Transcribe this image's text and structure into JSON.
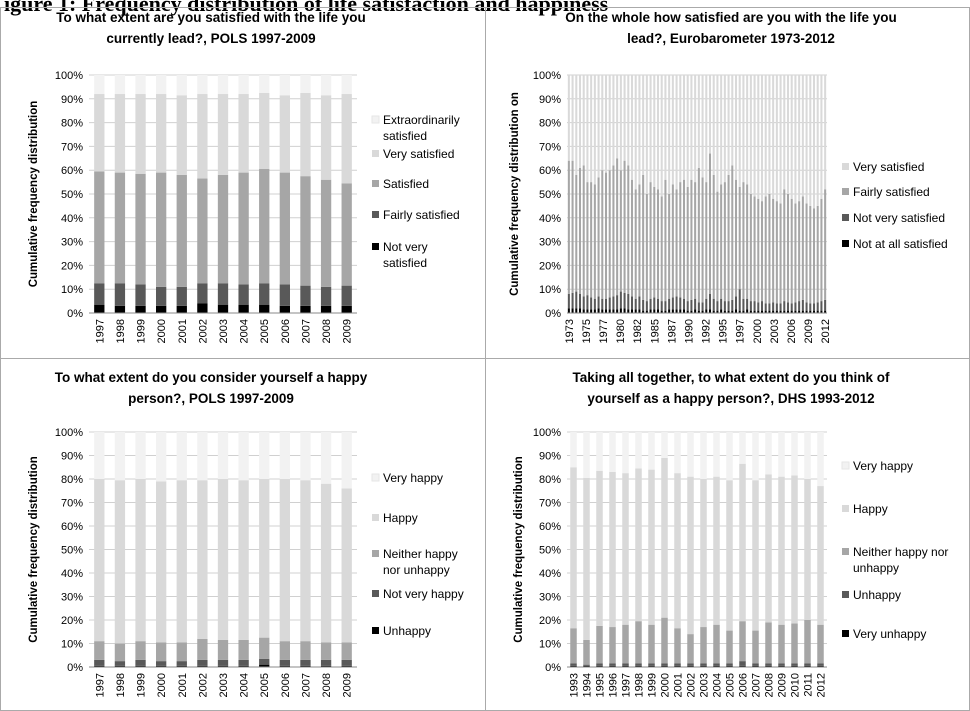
{
  "heading": "igure 1: Frequency distribution of life satisfaction and happiness",
  "chart_data": [
    {
      "type": "stacked-bar",
      "title": "To what extent are you satisfied with the life you currently lead?, POLS 1997-2009",
      "title_lines": [
        "To what extent are you satisfied with the life you",
        "currently lead?, POLS 1997-2009"
      ],
      "ylabel": "Cumulative frequency distribution",
      "ylim": [
        0,
        100
      ],
      "yticks": [
        "0%",
        "10%",
        "20%",
        "30%",
        "40%",
        "50%",
        "60%",
        "70%",
        "80%",
        "90%",
        "100%"
      ],
      "categories": [
        "1997",
        "1998",
        "1999",
        "2000",
        "2001",
        "2002",
        "2003",
        "2004",
        "2005",
        "2006",
        "2007",
        "2008",
        "2009"
      ],
      "legend_position": "right",
      "series": [
        {
          "name": "Not very satisfied",
          "color": "#000000",
          "values": [
            3.5,
            3,
            3,
            3,
            3,
            4,
            3.5,
            3.5,
            3.5,
            3,
            3,
            3,
            3
          ]
        },
        {
          "name": "Fairly satisfied",
          "color": "#595959",
          "values": [
            9,
            9.5,
            9,
            8,
            8,
            8.5,
            9,
            8.5,
            9,
            9,
            8.5,
            8,
            8.5
          ]
        },
        {
          "name": "Satisfied",
          "color": "#a6a6a6",
          "values": [
            47,
            46.5,
            46.5,
            48,
            47,
            44,
            45.5,
            47,
            48,
            47,
            46,
            45,
            43
          ]
        },
        {
          "name": "Very satisfied",
          "color": "#d9d9d9",
          "values": [
            32.5,
            33,
            33.5,
            33,
            33.5,
            35.5,
            34,
            33,
            32,
            32.5,
            35,
            35.5,
            37.5
          ]
        },
        {
          "name": "Extraordinarily satisfied",
          "color": "#f2f2f2",
          "values": [
            8,
            8,
            8,
            8,
            8.5,
            8,
            8,
            8,
            7.5,
            8.5,
            7.5,
            8.5,
            8
          ]
        }
      ],
      "legend": [
        {
          "lines": [
            "Extraordinarily",
            "satisfied"
          ]
        },
        {
          "lines": [
            "Very satisfied"
          ]
        },
        {
          "lines": [
            "Satisfied"
          ]
        },
        {
          "lines": [
            "Fairly satisfied"
          ]
        },
        {
          "lines": [
            "Not very",
            "satisfied"
          ]
        }
      ]
    },
    {
      "type": "stacked-bar",
      "title": "On the whole how satisfied are you with the life you lead?, Eurobarometer 1973-2012",
      "title_lines": [
        "On the whole how satisfied are you with the life you",
        "lead?, Eurobarometer 1973-2012"
      ],
      "ylabel": "Cumulative frequency distribution on",
      "ylim": [
        0,
        100
      ],
      "yticks": [
        "0%",
        "10%",
        "20%",
        "30%",
        "40%",
        "50%",
        "60%",
        "70%",
        "80%",
        "90%",
        "100%"
      ],
      "categories": [
        "1973",
        "1975",
        "1977",
        "1980",
        "1982",
        "1985",
        "1987",
        "1990",
        "1992",
        "1995",
        "1997",
        "2000",
        "2003",
        "2006",
        "2009",
        "2012"
      ],
      "legend_position": "right",
      "bar_count": 70,
      "cumulative_lower": [
        2,
        2,
        2,
        2,
        1.5,
        1.5,
        1.5,
        1.5,
        2,
        1.5,
        1.5,
        1.5,
        1.5,
        1.5,
        2,
        2,
        1.5,
        1.5,
        1.5,
        1.5,
        1,
        1,
        1.5,
        1.5,
        1.5,
        1,
        1,
        1.5,
        1.5,
        1.5,
        1.5,
        1.5,
        1,
        1,
        1.5,
        1,
        1,
        1.5,
        1.5,
        1,
        1,
        1.5,
        1,
        1,
        1,
        1.5,
        1,
        1,
        1.5,
        1,
        1,
        1,
        1,
        1,
        1,
        1,
        1,
        1,
        1,
        1,
        1,
        1,
        1,
        1,
        1,
        1,
        1,
        1,
        1,
        1
      ],
      "cumulative_mid": [
        8,
        8.5,
        9,
        8,
        7,
        7.5,
        6.5,
        6,
        7,
        6,
        6,
        6.5,
        7,
        7.5,
        9,
        8.5,
        8,
        7,
        6,
        7,
        5.5,
        5,
        6,
        6.5,
        6,
        5,
        5,
        6,
        6.5,
        7,
        6.5,
        6,
        5,
        5.5,
        6,
        4.5,
        4.5,
        6,
        8,
        6,
        5,
        6,
        5,
        5,
        5.5,
        7,
        10,
        6,
        6,
        5,
        5,
        4.5,
        5,
        4,
        4,
        4.5,
        4,
        4,
        5,
        4.5,
        4,
        4.5,
        5,
        5.5,
        4.5,
        4,
        4,
        4.5,
        5,
        5.5
      ],
      "cumulative_upper": [
        64,
        64,
        58,
        61,
        62,
        55,
        55,
        54,
        57,
        60,
        59,
        60,
        62,
        65,
        60,
        64,
        62,
        56,
        52,
        54,
        58,
        50,
        55,
        53,
        52,
        49,
        56,
        50,
        54,
        52,
        55,
        56,
        53,
        56,
        55,
        61,
        57,
        55,
        67,
        58,
        51,
        54,
        55,
        58,
        62,
        56,
        53,
        55,
        54,
        50,
        49,
        48,
        47,
        49,
        50,
        48,
        47,
        46,
        52,
        50,
        48,
        46,
        47,
        49,
        46,
        45,
        44,
        45,
        48,
        52
      ],
      "series": [
        {
          "name": "Not at all satisfied",
          "color": "#000000"
        },
        {
          "name": "Not very satisfied",
          "color": "#595959"
        },
        {
          "name": "Fairly satisfied",
          "color": "#a6a6a6"
        },
        {
          "name": "Very satisfied",
          "color": "#d9d9d9"
        }
      ],
      "legend": [
        {
          "lines": [
            "Very satisfied"
          ]
        },
        {
          "lines": [
            "Fairly satisfied"
          ]
        },
        {
          "lines": [
            "Not very satisfied"
          ]
        },
        {
          "lines": [
            "Not at all satisfied"
          ]
        }
      ]
    },
    {
      "type": "stacked-bar",
      "title": "To what extent do you consider yourself a happy person?, POLS 1997-2009",
      "title_lines": [
        "To what extent do you consider yourself a happy",
        "person?, POLS 1997-2009"
      ],
      "ylabel": "Cumulative frequency distribution",
      "ylim": [
        0,
        100
      ],
      "yticks": [
        "0%",
        "10%",
        "20%",
        "30%",
        "40%",
        "50%",
        "60%",
        "70%",
        "80%",
        "90%",
        "100%"
      ],
      "categories": [
        "1997",
        "1998",
        "1999",
        "2000",
        "2001",
        "2002",
        "2003",
        "2004",
        "2005",
        "2006",
        "2007",
        "2008",
        "2009"
      ],
      "legend_position": "right",
      "series": [
        {
          "name": "Unhappy",
          "color": "#000000",
          "values": [
            0.5,
            0.5,
            0.5,
            0.5,
            0.5,
            0.5,
            0.5,
            0.5,
            1,
            0.5,
            0.5,
            0.5,
            0.5
          ]
        },
        {
          "name": "Not very happy",
          "color": "#595959",
          "values": [
            2.5,
            2,
            2.5,
            2,
            2,
            2.5,
            2.5,
            2.5,
            2.5,
            2.5,
            2.5,
            2.5,
            2.5
          ]
        },
        {
          "name": "Neither happy nor unhappy",
          "color": "#a6a6a6",
          "values": [
            8,
            7.5,
            8,
            8,
            8,
            9,
            8.5,
            8.5,
            9,
            8,
            8,
            7.5,
            7.5
          ]
        },
        {
          "name": "Happy",
          "color": "#d9d9d9",
          "values": [
            69,
            69.5,
            69,
            68.5,
            69,
            67.5,
            68.5,
            68,
            67.5,
            69,
            68.5,
            67.5,
            65.5
          ]
        },
        {
          "name": "Very happy",
          "color": "#f2f2f2",
          "values": [
            20,
            20.5,
            20,
            21,
            20.5,
            20.5,
            20,
            20.5,
            20,
            20,
            20.5,
            22,
            24
          ]
        }
      ],
      "legend": [
        {
          "lines": [
            "Very happy"
          ]
        },
        {
          "lines": [
            "Happy"
          ]
        },
        {
          "lines": [
            "Neither happy",
            "nor unhappy"
          ]
        },
        {
          "lines": [
            "Not very happy"
          ]
        },
        {
          "lines": [
            "Unhappy"
          ]
        }
      ]
    },
    {
      "type": "stacked-bar",
      "title": "Taking all together, to what extent do you think of yourself as a happy person?, DHS 1993-2012",
      "title_lines": [
        "Taking all together, to what extent do you think of",
        "yourself as a happy person?, DHS 1993-2012"
      ],
      "ylabel": "Cumulative frequency distribution",
      "ylim": [
        0,
        100
      ],
      "yticks": [
        "0%",
        "10%",
        "20%",
        "30%",
        "40%",
        "50%",
        "60%",
        "70%",
        "80%",
        "90%",
        "100%"
      ],
      "categories": [
        "1993",
        "1994",
        "1995",
        "1996",
        "1997",
        "1998",
        "1999",
        "2000",
        "2001",
        "2002",
        "2003",
        "2004",
        "2005",
        "2006",
        "2007",
        "2008",
        "2009",
        "2010",
        "2011",
        "2012"
      ],
      "legend_position": "right",
      "series": [
        {
          "name": "Very unhappy",
          "color": "#000000",
          "values": [
            0.5,
            0.5,
            0.5,
            0.5,
            0.5,
            0.5,
            0.5,
            0.5,
            0.5,
            0.5,
            0.5,
            0.5,
            0.5,
            0.5,
            0.5,
            0.5,
            0.5,
            0.5,
            0.5,
            0.5
          ]
        },
        {
          "name": "Unhappy",
          "color": "#595959",
          "values": [
            1,
            0.5,
            1,
            1,
            1,
            1,
            1,
            1,
            1,
            1,
            1,
            1,
            1,
            2,
            1,
            1,
            1,
            1,
            1,
            1
          ]
        },
        {
          "name": "Neither happy nor unhappy",
          "color": "#a6a6a6",
          "values": [
            15,
            10.5,
            16,
            15.5,
            16.5,
            18,
            16.5,
            19.5,
            15,
            12.5,
            15.5,
            16.5,
            14,
            17,
            14,
            17.5,
            16.5,
            17,
            18.5,
            16.5
          ]
        },
        {
          "name": "Happy",
          "color": "#d9d9d9",
          "values": [
            68.5,
            69,
            66,
            66,
            64.5,
            65,
            66,
            68,
            66,
            67,
            63,
            63,
            64,
            67,
            64,
            63,
            63,
            63,
            60,
            59
          ]
        },
        {
          "name": "Very happy",
          "color": "#f2f2f2",
          "values": [
            15,
            19.5,
            16.5,
            17,
            17.5,
            15.5,
            16,
            11,
            17.5,
            19,
            20,
            19,
            20.5,
            13.5,
            20.5,
            18,
            19,
            18.5,
            20,
            23
          ]
        }
      ],
      "legend": [
        {
          "lines": [
            "Very happy"
          ]
        },
        {
          "lines": [
            "Happy"
          ]
        },
        {
          "lines": [
            "Neither happy nor",
            "unhappy"
          ]
        },
        {
          "lines": [
            "Unhappy"
          ]
        },
        {
          "lines": [
            "Very unhappy"
          ]
        }
      ]
    }
  ]
}
